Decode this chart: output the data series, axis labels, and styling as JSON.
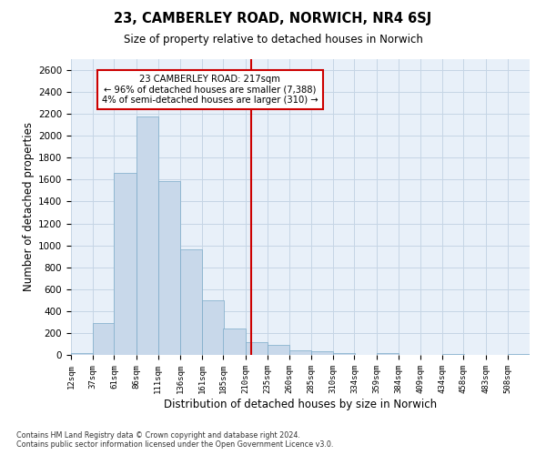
{
  "title": "23, CAMBERLEY ROAD, NORWICH, NR4 6SJ",
  "subtitle": "Size of property relative to detached houses in Norwich",
  "xlabel": "Distribution of detached houses by size in Norwich",
  "ylabel": "Number of detached properties",
  "footer_line1": "Contains HM Land Registry data © Crown copyright and database right 2024.",
  "footer_line2": "Contains public sector information licensed under the Open Government Licence v3.0.",
  "annotation_title": "23 CAMBERLEY ROAD: 217sqm",
  "annotation_line2": "← 96% of detached houses are smaller (7,388)",
  "annotation_line3": "4% of semi-detached houses are larger (310) →",
  "bar_labels": [
    "12sqm",
    "37sqm",
    "61sqm",
    "86sqm",
    "111sqm",
    "136sqm",
    "161sqm",
    "185sqm",
    "210sqm",
    "235sqm",
    "260sqm",
    "285sqm",
    "310sqm",
    "334sqm",
    "359sqm",
    "384sqm",
    "409sqm",
    "434sqm",
    "458sqm",
    "483sqm",
    "508sqm"
  ],
  "bar_lefts": [
    12,
    37,
    61,
    86,
    111,
    136,
    161,
    185,
    210,
    235,
    260,
    285,
    310,
    334,
    359,
    384,
    409,
    434,
    458,
    483,
    508
  ],
  "bar_values": [
    20,
    290,
    1660,
    2180,
    1590,
    960,
    500,
    240,
    115,
    95,
    40,
    30,
    20,
    0,
    20,
    0,
    0,
    10,
    0,
    0,
    10
  ],
  "bin_width": 25,
  "vline_x": 217,
  "ylim_max": 2700,
  "yticks": [
    0,
    200,
    400,
    600,
    800,
    1000,
    1200,
    1400,
    1600,
    1800,
    2000,
    2200,
    2400,
    2600
  ],
  "bar_fill": "#c8d8ea",
  "bar_edge": "#7aaac8",
  "vline_color": "#cc0000",
  "ann_box_edge": "#cc0000",
  "grid_color": "#c5d5e5",
  "bg_color": "#e8f0f9"
}
